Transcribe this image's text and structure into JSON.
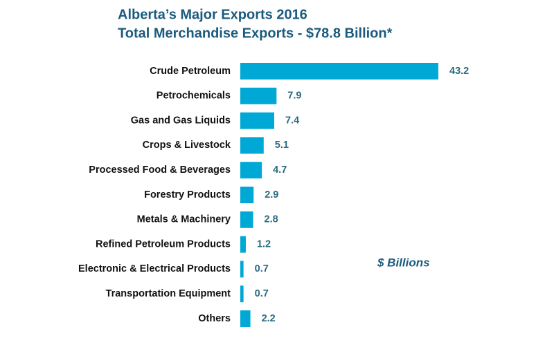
{
  "chart_data": {
    "type": "hbar",
    "title": "Alberta’s Major Exports 2016",
    "subtitle": "Total Merchandise Exports - $78.8 Billion*",
    "annotation": "$ Billions",
    "categories": [
      "Crude Petroleum",
      "Petrochemicals",
      "Gas and Gas Liquids",
      "Crops & Livestock",
      "Processed Food & Beverages",
      "Forestry  Products",
      "Metals & Machinery",
      "Refined Petroleum Products",
      "Electronic & Electrical Products",
      "Transportation Equipment",
      "Others"
    ],
    "values": [
      43.2,
      7.9,
      7.4,
      5.1,
      4.7,
      2.9,
      2.8,
      1.2,
      0.7,
      0.7,
      2.2
    ],
    "color": "#00a8d6"
  }
}
